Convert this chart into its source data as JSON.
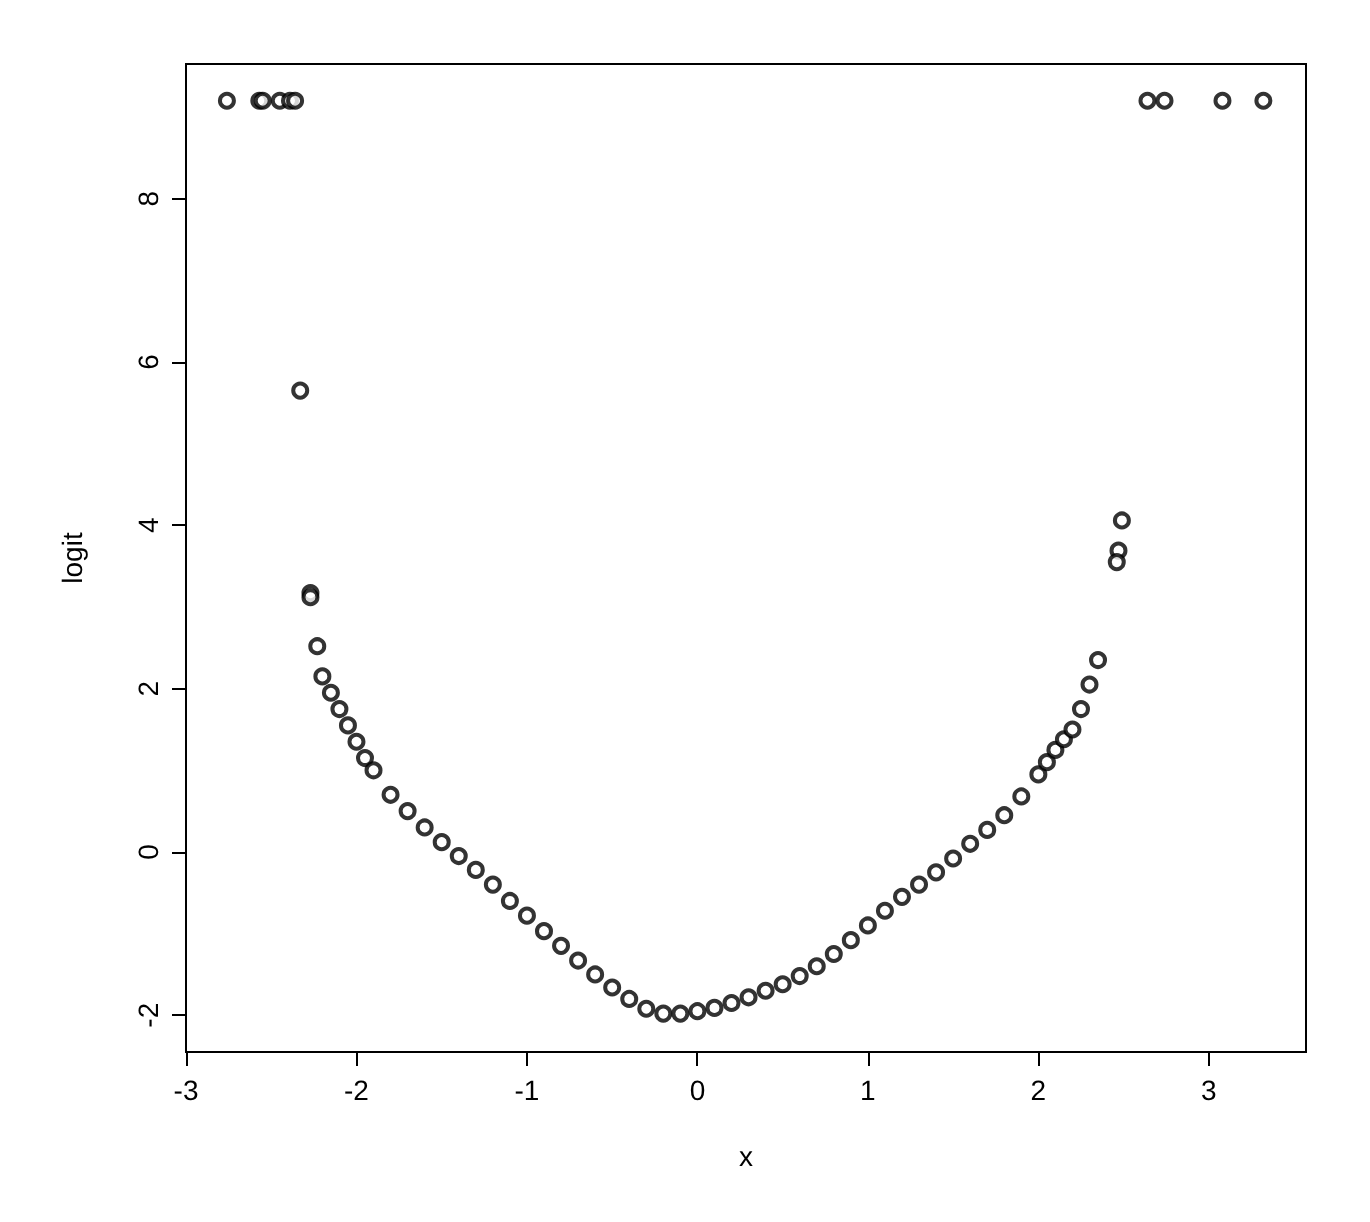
{
  "chart_data": {
    "type": "scatter",
    "xlabel": "x",
    "ylabel": "logit",
    "marker": "circle",
    "grid": false,
    "xlim": [
      -3.0,
      3.57
    ],
    "ylim": [
      -2.45,
      9.65
    ],
    "xticks": [
      -3,
      -2,
      -1,
      0,
      1,
      2,
      3
    ],
    "yticks": [
      -2,
      0,
      2,
      4,
      6,
      8
    ],
    "series": [
      {
        "color": "#000000",
        "x": [
          -2.76,
          -2.57,
          -2.55,
          -2.45,
          -2.39,
          -2.36,
          2.64,
          2.74,
          3.08,
          3.32,
          -2.33,
          -2.27,
          -2.27,
          -2.23,
          2.49,
          2.47,
          2.46,
          2.35,
          -2.2,
          -2.15,
          -2.1,
          -2.05,
          -2.0,
          -1.95,
          -1.9,
          -1.8,
          -1.7,
          -1.6,
          -1.5,
          -1.4,
          -1.3,
          -1.2,
          -1.1,
          -1.0,
          -0.9,
          -0.8,
          -0.7,
          -0.6,
          -0.5,
          -0.4,
          -0.3,
          -0.2,
          -0.1,
          0.0,
          0.1,
          0.2,
          0.3,
          0.4,
          0.5,
          0.6,
          0.7,
          0.8,
          0.9,
          1.0,
          1.1,
          1.2,
          1.3,
          1.4,
          1.5,
          1.6,
          1.7,
          1.8,
          1.9,
          2.0,
          2.05,
          2.1,
          2.15,
          2.2,
          2.25,
          2.3
        ],
        "values": [
          9.2,
          9.2,
          9.2,
          9.2,
          9.2,
          9.2,
          9.2,
          9.2,
          9.2,
          9.2,
          5.65,
          3.17,
          3.12,
          2.52,
          4.06,
          3.69,
          3.55,
          2.35,
          2.15,
          1.95,
          1.75,
          1.55,
          1.35,
          1.15,
          1.0,
          0.7,
          0.5,
          0.3,
          0.12,
          -0.05,
          -0.22,
          -0.4,
          -0.6,
          -0.78,
          -0.97,
          -1.15,
          -1.33,
          -1.5,
          -1.66,
          -1.8,
          -1.92,
          -1.98,
          -1.98,
          -1.95,
          -1.91,
          -1.85,
          -1.78,
          -1.7,
          -1.62,
          -1.52,
          -1.4,
          -1.25,
          -1.08,
          -0.9,
          -0.72,
          -0.55,
          -0.4,
          -0.25,
          -0.08,
          0.1,
          0.27,
          0.45,
          0.68,
          0.95,
          1.1,
          1.25,
          1.38,
          1.5,
          1.75,
          2.05
        ]
      }
    ]
  }
}
